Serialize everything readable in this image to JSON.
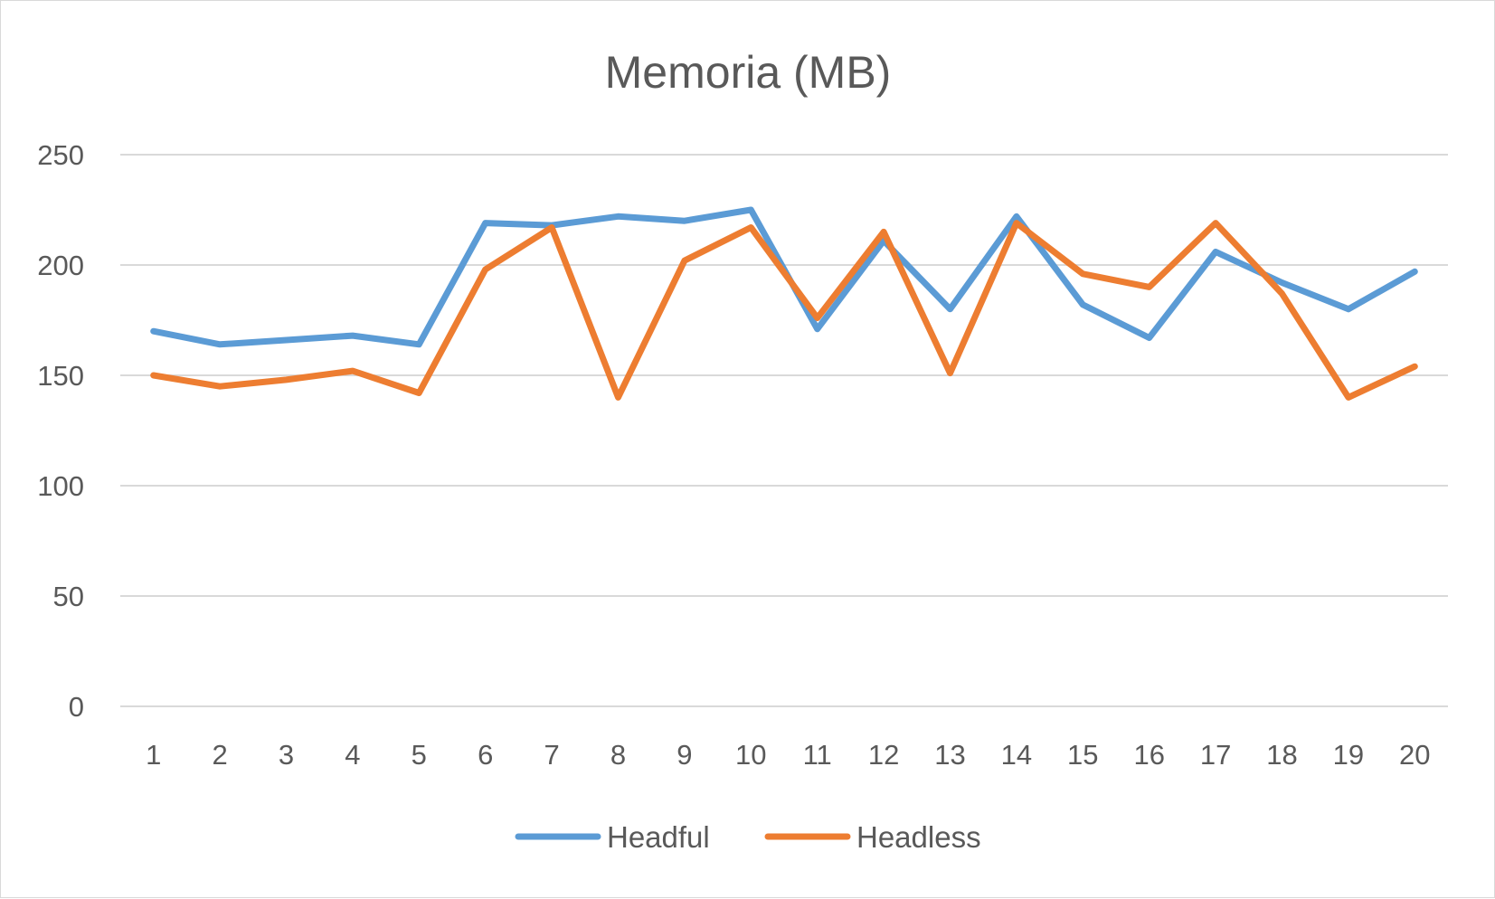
{
  "chart_data": {
    "type": "line",
    "title": "Memoria (MB)",
    "xlabel": "",
    "ylabel": "",
    "categories": [
      "1",
      "2",
      "3",
      "4",
      "5",
      "6",
      "7",
      "8",
      "9",
      "10",
      "11",
      "12",
      "13",
      "14",
      "15",
      "16",
      "17",
      "18",
      "19",
      "20"
    ],
    "y_ticks": [
      "0",
      "50",
      "100",
      "150",
      "200",
      "250"
    ],
    "ylim": [
      0,
      250
    ],
    "grid": true,
    "legend_position": "bottom",
    "series": [
      {
        "name": "Headful",
        "color": "#5b9bd5",
        "values": [
          170,
          164,
          166,
          168,
          164,
          219,
          218,
          222,
          220,
          225,
          171,
          211,
          180,
          222,
          182,
          167,
          206,
          192,
          180,
          197
        ]
      },
      {
        "name": "Headless",
        "color": "#ed7d31",
        "values": [
          150,
          145,
          148,
          152,
          142,
          198,
          217,
          140,
          202,
          217,
          176,
          215,
          151,
          219,
          196,
          190,
          219,
          187,
          140,
          154
        ]
      }
    ]
  }
}
